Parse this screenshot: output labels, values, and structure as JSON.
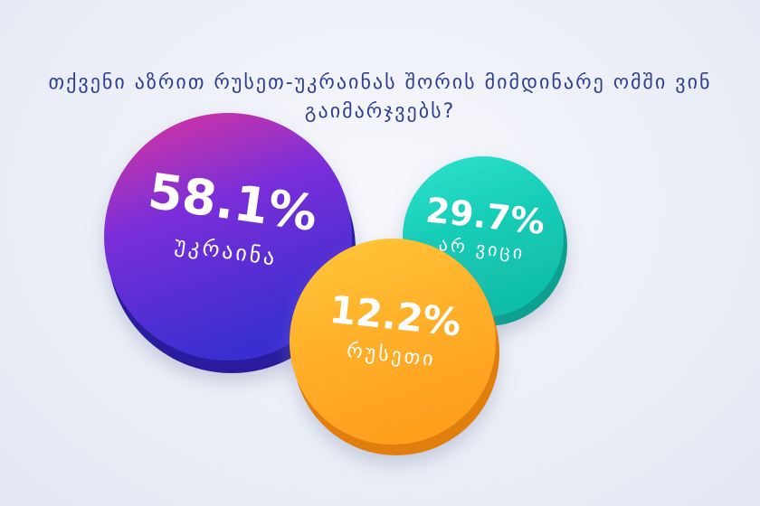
{
  "title": "თქვენი აზრით რუსეთ-უკრაინას შორის მიმდინარე ომში ვინ გაიმარჯვებს?",
  "chart_data": {
    "type": "bubble",
    "title": "თქვენი აზრით რუსეთ-უკრაინას შორის მიმდინარე ომში ვინ გაიმარჯვებს?",
    "unit": "%",
    "series": [
      {
        "label": "უკრაინა",
        "value": 58.1,
        "display": "58.1%",
        "colors": [
          "#e0329a",
          "#7b2fd9",
          "#3b2fd0"
        ],
        "side_color": "#2a1f9e"
      },
      {
        "label": "არ ვიცი",
        "value": 29.7,
        "display": "29.7%",
        "colors": [
          "#2fe3cf",
          "#18cdb8",
          "#10bfa8"
        ],
        "side_color": "#0fa08e"
      },
      {
        "label": "რუსეთი",
        "value": 12.2,
        "display": "12.2%",
        "colors": [
          "#ffc83a",
          "#ffb12b",
          "#ff9f1f"
        ],
        "side_color": "#e07f10"
      }
    ]
  }
}
